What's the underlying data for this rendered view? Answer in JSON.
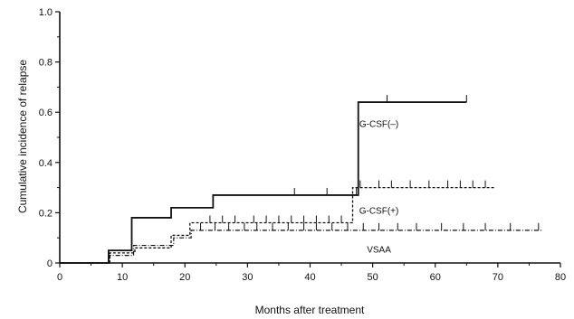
{
  "chart_data": {
    "type": "line",
    "step": true,
    "title": "",
    "xlabel": "Months after treatment",
    "ylabel": "Cumulative incidence of relapse",
    "xlim": [
      0,
      80
    ],
    "ylim": [
      0,
      1.0
    ],
    "x_ticks": [
      0,
      10,
      20,
      30,
      40,
      50,
      60,
      70,
      80
    ],
    "y_ticks": [
      0,
      0.2,
      0.4,
      0.6,
      0.8,
      1.0
    ],
    "x_tick_labels": [
      "0",
      "10",
      "20",
      "30",
      "40",
      "50",
      "60",
      "70",
      "80"
    ],
    "y_tick_labels": [
      "0",
      "0.2",
      "0.4",
      "0.6",
      "0.8",
      "1.0"
    ],
    "grid": false,
    "series": [
      {
        "name": "G-CSF(–)",
        "style": "solid",
        "color": "#111111",
        "steps": [
          [
            0,
            0
          ],
          [
            7.8,
            0.05
          ],
          [
            11.5,
            0.18
          ],
          [
            17.8,
            0.22
          ],
          [
            24.5,
            0.27
          ],
          [
            47.7,
            0.64
          ],
          [
            65,
            0.64
          ]
        ],
        "censored": [
          37.5,
          42.7,
          47.4,
          52.3,
          65
        ]
      },
      {
        "name": "G-CSF(+)",
        "style": "dashed",
        "color": "#111111",
        "steps": [
          [
            0,
            0
          ],
          [
            8,
            0.04
          ],
          [
            12,
            0.06
          ],
          [
            17.8,
            0.11
          ],
          [
            20.8,
            0.16
          ],
          [
            46.8,
            0.3
          ],
          [
            69.5,
            0.3
          ]
        ],
        "censored": [
          24,
          26,
          28,
          31,
          33,
          35,
          37,
          39,
          41,
          43,
          45,
          48,
          51,
          53,
          56,
          59,
          62,
          64,
          66,
          68
        ]
      },
      {
        "name": "VSAA",
        "style": "dashdot",
        "color": "#111111",
        "steps": [
          [
            0,
            0
          ],
          [
            8,
            0.03
          ],
          [
            11.8,
            0.07
          ],
          [
            18.2,
            0.1
          ],
          [
            21,
            0.13
          ],
          [
            77,
            0.13
          ]
        ],
        "censored": [
          22.5,
          24.8,
          27,
          29.5,
          31.5,
          34,
          36.5,
          39,
          41,
          43.5,
          46,
          48.5,
          51,
          54,
          57,
          61,
          64.5,
          68,
          72,
          76.5
        ]
      }
    ],
    "annotations": [
      {
        "text": "G-CSF(–)",
        "x": 51,
        "y": 0.555
      },
      {
        "text": "G-CSF(+)",
        "x": 51,
        "y": 0.21
      },
      {
        "text": "VSAA",
        "x": 51,
        "y": 0.055
      }
    ]
  }
}
